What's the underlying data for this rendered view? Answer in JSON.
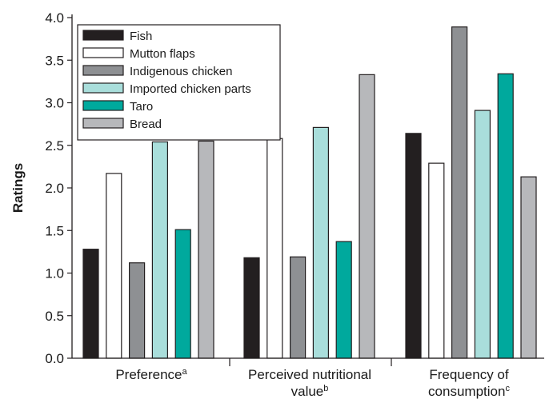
{
  "chart_data": {
    "type": "bar",
    "ylabel": "Ratings",
    "ylim": [
      0,
      4.0
    ],
    "yticks": [
      "0.0",
      "0.5",
      "1.0",
      "1.5",
      "2.0",
      "2.5",
      "3.0",
      "3.5",
      "4.0"
    ],
    "grid": false,
    "legend_position": "top-left",
    "categories": [
      {
        "main": "Preference",
        "sup": "a"
      },
      {
        "main": "Perceived nutritional",
        "second": "value",
        "sup": "b"
      },
      {
        "main": "Frequency of",
        "second": "consumption",
        "sup": "c"
      }
    ],
    "series": [
      {
        "name": "Fish",
        "color": "#231f20",
        "stroke": "#231f20",
        "values": [
          1.28,
          1.18,
          2.64
        ]
      },
      {
        "name": "Mutton flaps",
        "color": "#ffffff",
        "stroke": "#231f20",
        "values": [
          2.17,
          2.58,
          2.29
        ]
      },
      {
        "name": "Indigenous chicken",
        "color": "#8e9093",
        "stroke": "#231f20",
        "values": [
          1.12,
          1.19,
          3.89
        ]
      },
      {
        "name": "Imported chicken parts",
        "color": "#a9dedb",
        "stroke": "#231f20",
        "values": [
          2.54,
          2.71,
          2.91
        ]
      },
      {
        "name": "Taro",
        "color": "#00a99d",
        "stroke": "#231f20",
        "values": [
          1.51,
          1.37,
          3.34
        ]
      },
      {
        "name": "Bread",
        "color": "#b7b8bb",
        "stroke": "#231f20",
        "values": [
          2.55,
          3.33,
          2.13
        ]
      }
    ]
  }
}
